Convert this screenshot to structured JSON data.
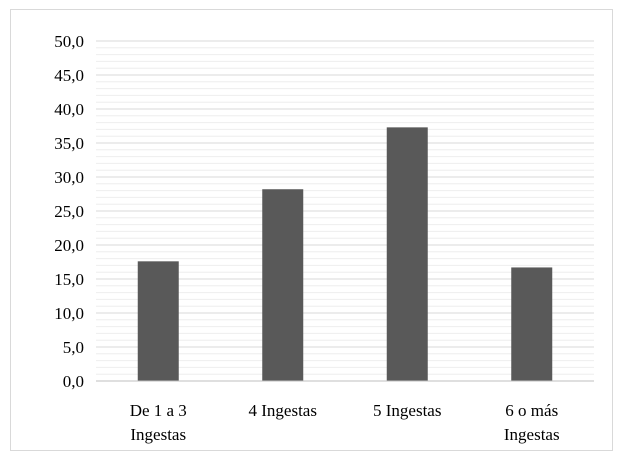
{
  "chart_data": {
    "type": "bar",
    "categories": [
      [
        "De 1 a 3",
        "Ingestas"
      ],
      [
        "4 Ingestas"
      ],
      [
        "5 Ingestas"
      ],
      [
        "6 o más",
        "Ingestas"
      ]
    ],
    "values": [
      17.6,
      28.2,
      37.3,
      16.7
    ],
    "ylim": [
      0,
      50
    ],
    "ytick_step": 5,
    "ytick_labels": [
      "0,0",
      "5,0",
      "10,0",
      "15,0",
      "20,0",
      "25,0",
      "30,0",
      "35,0",
      "40,0",
      "45,0",
      "50,0"
    ],
    "minor_grid_step": 1,
    "grid": true,
    "colors": {
      "bar": "#595959",
      "major_grid": "#d9d9d9",
      "minor_grid": "#eeeeee",
      "axis": "#bfbfbf"
    }
  }
}
